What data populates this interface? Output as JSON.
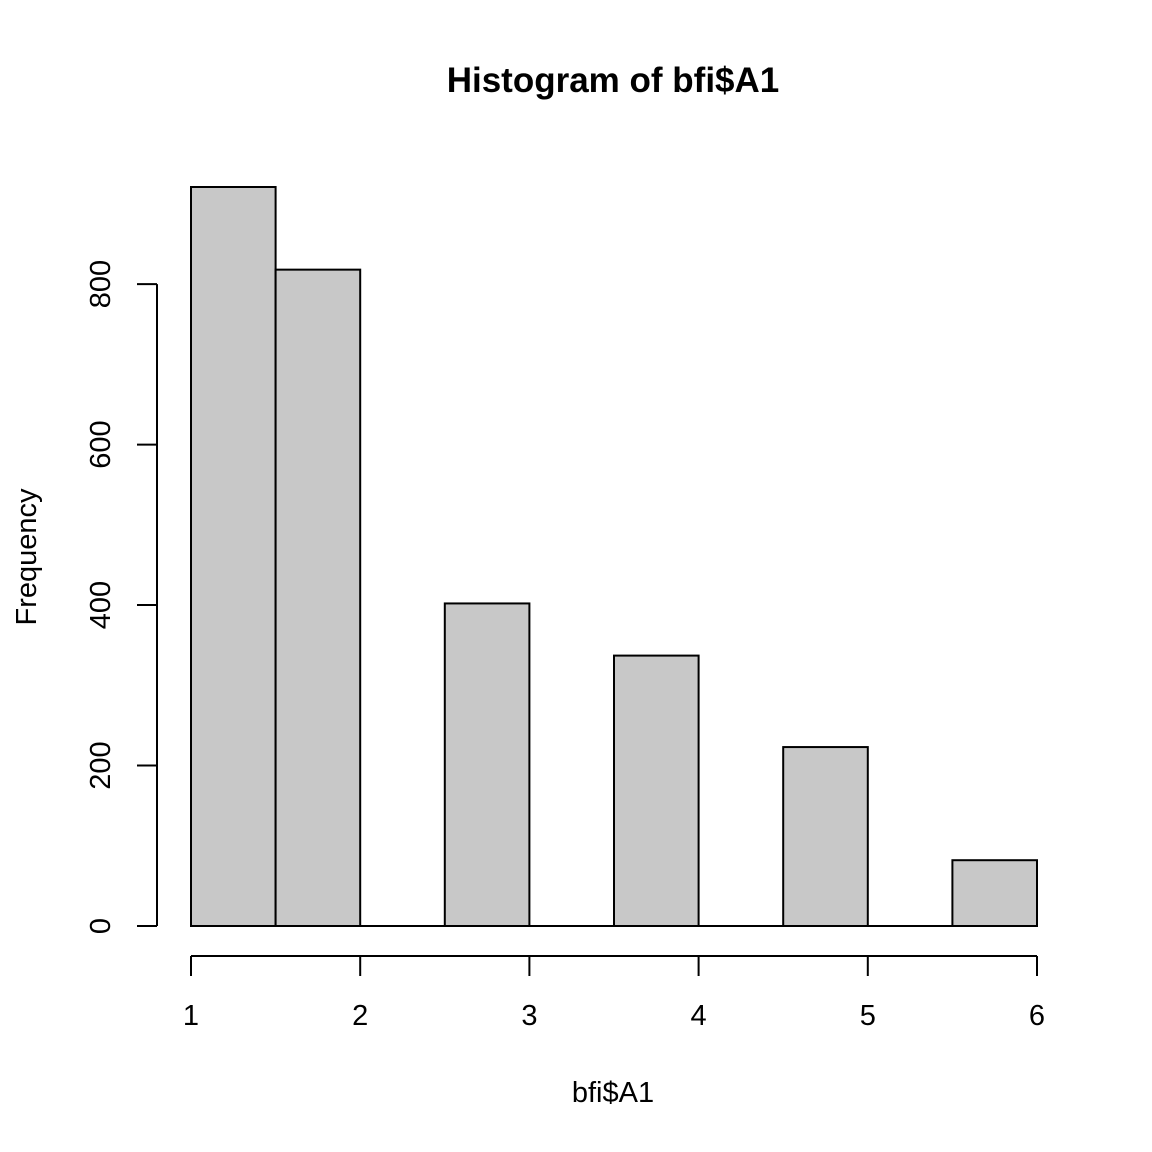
{
  "chart_data": {
    "type": "bar",
    "title": "Histogram of bfi$A1",
    "xlabel": "bfi$A1",
    "ylabel": "Frequency",
    "bins": [
      {
        "start": 1.0,
        "end": 1.5,
        "value": 921
      },
      {
        "start": 1.5,
        "end": 2.0,
        "value": 818
      },
      {
        "start": 2.0,
        "end": 2.5,
        "value": 0
      },
      {
        "start": 2.5,
        "end": 3.0,
        "value": 402
      },
      {
        "start": 3.0,
        "end": 3.5,
        "value": 0
      },
      {
        "start": 3.5,
        "end": 4.0,
        "value": 337
      },
      {
        "start": 4.0,
        "end": 4.5,
        "value": 0
      },
      {
        "start": 4.5,
        "end": 5.0,
        "value": 223
      },
      {
        "start": 5.0,
        "end": 5.5,
        "value": 0
      },
      {
        "start": 5.5,
        "end": 6.0,
        "value": 82
      }
    ],
    "x_ticks": [
      1,
      2,
      3,
      4,
      5,
      6
    ],
    "y_ticks": [
      0,
      200,
      400,
      600,
      800
    ],
    "xlim": [
      1,
      6
    ],
    "ylim": [
      0,
      921
    ],
    "bar_color": "#c8c8c8",
    "grid": false,
    "legend": false
  }
}
